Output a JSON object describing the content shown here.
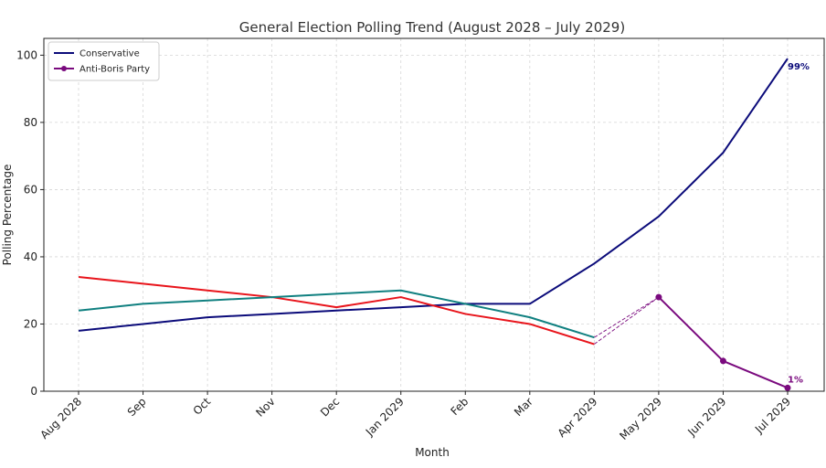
{
  "chart_data": {
    "type": "line",
    "title": "General Election Polling Trend (August 2028 – July 2029)",
    "xlabel": "Month",
    "ylabel": "Polling Percentage",
    "ylim": [
      0,
      105
    ],
    "yticks": [
      0,
      20,
      40,
      60,
      80,
      100
    ],
    "grid": true,
    "legend_position": "top-left",
    "categories": [
      "Aug 2028",
      "Sep",
      "Oct",
      "Nov",
      "Dec",
      "Jan 2029",
      "Feb",
      "Mar",
      "Apr 2029",
      "May 2029",
      "Jun 2029",
      "Jul 2029"
    ],
    "series": [
      {
        "name": "Conservative",
        "color": "#0b0b7a",
        "marker": false,
        "in_legend": true,
        "values": [
          18,
          20,
          22,
          23,
          24,
          25,
          26,
          26,
          38,
          52,
          71,
          99
        ],
        "end_label": "99%"
      },
      {
        "name": "",
        "color": "#e8141b",
        "marker": false,
        "in_legend": false,
        "values": [
          34,
          32,
          30,
          28,
          25,
          28,
          23,
          20,
          14,
          null,
          null,
          null
        ]
      },
      {
        "name": "",
        "color": "#108080",
        "marker": false,
        "in_legend": false,
        "values": [
          24,
          26,
          27,
          28,
          29,
          30,
          26,
          22,
          16,
          null,
          null,
          null
        ]
      },
      {
        "name": "Anti-Boris Party",
        "color": "#7a0a7e",
        "marker": true,
        "in_legend": true,
        "values": [
          null,
          null,
          null,
          null,
          null,
          null,
          null,
          null,
          null,
          28,
          9,
          1
        ],
        "end_label": "1%"
      }
    ],
    "connectors": [
      {
        "from": {
          "x": "Apr 2029",
          "y": 16
        },
        "to": {
          "x": "May 2029",
          "y": 28
        },
        "color": "#7a0a7e",
        "style": "dashed"
      },
      {
        "from": {
          "x": "Apr 2029",
          "y": 14
        },
        "to": {
          "x": "May 2029",
          "y": 28
        },
        "color": "#7a0a7e",
        "style": "dashed"
      }
    ]
  }
}
